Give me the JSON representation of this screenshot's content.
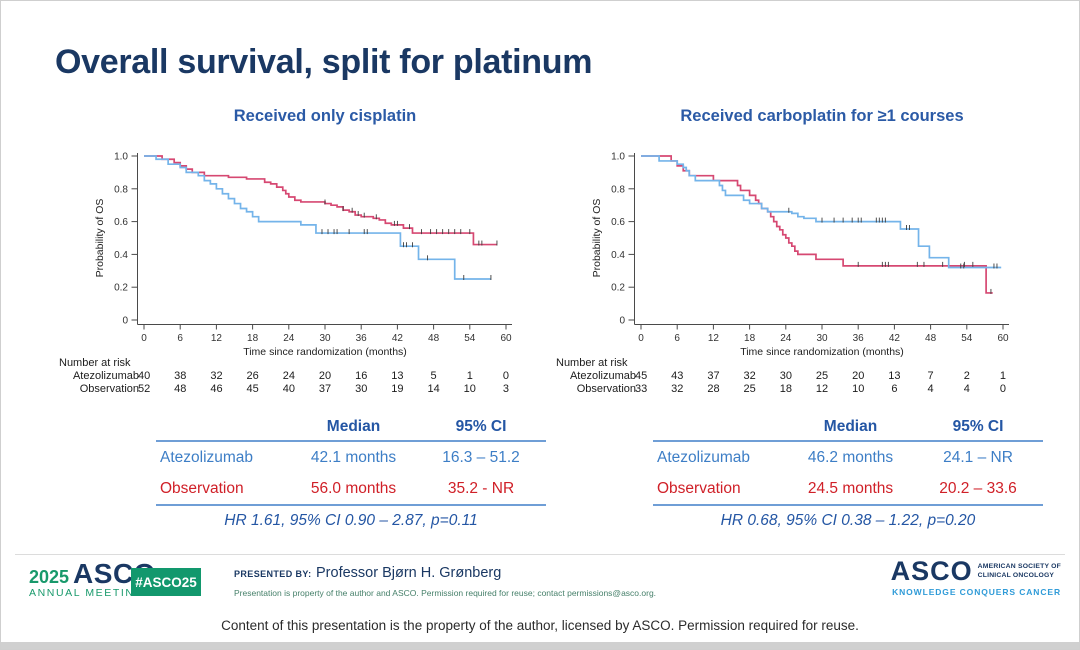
{
  "title": "Overall survival, split for platinum",
  "chart_data": [
    {
      "type": "line",
      "km_style": "step",
      "title": "Received only cisplatin",
      "xlabel": "Time since randomization (months)",
      "ylabel": "Probability of OS",
      "x_ticks": [
        0,
        6,
        12,
        18,
        24,
        30,
        36,
        42,
        48,
        54,
        60
      ],
      "y_ticks": [
        0,
        0.2,
        0.4,
        0.6,
        0.8,
        1.0
      ],
      "y_tick_labels": [
        "0",
        "0.2",
        "0.4",
        "0.6",
        "0.8",
        "1.0"
      ],
      "xlim": [
        0,
        60
      ],
      "ylim": [
        0,
        1.0
      ],
      "grid": false,
      "series": [
        {
          "name": "Observation",
          "color": "#d64872",
          "steps": [
            [
              0,
              1.0
            ],
            [
              3,
              0.98
            ],
            [
              5,
              0.96
            ],
            [
              6,
              0.94
            ],
            [
              7,
              0.92
            ],
            [
              8,
              0.9
            ],
            [
              10,
              0.88
            ],
            [
              14,
              0.87
            ],
            [
              17,
              0.86
            ],
            [
              20,
              0.84
            ],
            [
              21,
              0.83
            ],
            [
              22,
              0.81
            ],
            [
              23,
              0.79
            ],
            [
              23.5,
              0.77
            ],
            [
              24,
              0.75
            ],
            [
              25,
              0.73
            ],
            [
              26,
              0.72
            ],
            [
              30,
              0.71
            ],
            [
              31,
              0.7
            ],
            [
              32,
              0.69
            ],
            [
              33,
              0.67
            ],
            [
              34,
              0.66
            ],
            [
              35,
              0.64
            ],
            [
              36,
              0.63
            ],
            [
              38,
              0.62
            ],
            [
              39,
              0.61
            ],
            [
              40,
              0.59
            ],
            [
              41,
              0.58
            ],
            [
              43,
              0.56
            ],
            [
              44.5,
              0.53
            ],
            [
              54.6,
              0.46
            ],
            [
              58.5,
              0.46
            ]
          ],
          "censors": [
            [
              30,
              0.71
            ],
            [
              33,
              0.67
            ],
            [
              34.5,
              0.66
            ],
            [
              35.5,
              0.64
            ],
            [
              36.5,
              0.63
            ],
            [
              38.5,
              0.62
            ],
            [
              41.5,
              0.58
            ],
            [
              42,
              0.58
            ],
            [
              44,
              0.56
            ],
            [
              46,
              0.53
            ],
            [
              47.5,
              0.53
            ],
            [
              48.5,
              0.53
            ],
            [
              49.5,
              0.53
            ],
            [
              50.5,
              0.53
            ],
            [
              51.5,
              0.53
            ],
            [
              52.5,
              0.53
            ],
            [
              54,
              0.53
            ],
            [
              55.5,
              0.46
            ],
            [
              56,
              0.46
            ],
            [
              58.5,
              0.46
            ]
          ]
        },
        {
          "name": "Atezolizumab",
          "color": "#74b4ea",
          "steps": [
            [
              0,
              1.0
            ],
            [
              2,
              0.98
            ],
            [
              4,
              0.95
            ],
            [
              6,
              0.93
            ],
            [
              7,
              0.9
            ],
            [
              9,
              0.88
            ],
            [
              10,
              0.85
            ],
            [
              11,
              0.83
            ],
            [
              12,
              0.8
            ],
            [
              13,
              0.77
            ],
            [
              14,
              0.74
            ],
            [
              15,
              0.71
            ],
            [
              16,
              0.68
            ],
            [
              17,
              0.66
            ],
            [
              18,
              0.63
            ],
            [
              19,
              0.6
            ],
            [
              26,
              0.58
            ],
            [
              28.5,
              0.53
            ],
            [
              42.5,
              0.45
            ],
            [
              45.5,
              0.37
            ],
            [
              51.5,
              0.25
            ],
            [
              57.5,
              0.25
            ]
          ],
          "censors": [
            [
              29.5,
              0.53
            ],
            [
              30.5,
              0.53
            ],
            [
              31.5,
              0.53
            ],
            [
              32,
              0.53
            ],
            [
              34,
              0.53
            ],
            [
              36.5,
              0.53
            ],
            [
              37,
              0.53
            ],
            [
              43,
              0.45
            ],
            [
              43.5,
              0.45
            ],
            [
              44.5,
              0.45
            ],
            [
              47,
              0.37
            ],
            [
              53,
              0.25
            ],
            [
              57.5,
              0.25
            ]
          ]
        }
      ],
      "risk_header": "Number at risk",
      "risk_rows": [
        {
          "label": "Atezolizumab",
          "counts": [
            40,
            38,
            32,
            26,
            24,
            20,
            16,
            13,
            5,
            1,
            0
          ]
        },
        {
          "label": "Observation",
          "counts": [
            52,
            48,
            46,
            45,
            40,
            37,
            30,
            19,
            14,
            10,
            3
          ]
        }
      ],
      "table": {
        "headers": [
          "Median",
          "95% CI"
        ],
        "rows": [
          {
            "label": "Atezolizumab",
            "median": "42.1 months",
            "ci": "16.3 – 51.2"
          },
          {
            "label": "Observation",
            "median": "56.0 months",
            "ci": "35.2 - NR"
          }
        ],
        "hr_line": "HR 1.61, 95% CI 0.90 – 2.87, p=0.11"
      }
    },
    {
      "type": "line",
      "km_style": "step",
      "title": "Received carboplatin for ≥1 courses",
      "xlabel": "Time since randomization (months)",
      "ylabel": "Probability of OS",
      "x_ticks": [
        0,
        6,
        12,
        18,
        24,
        30,
        36,
        42,
        48,
        54,
        60
      ],
      "y_ticks": [
        0,
        0.2,
        0.4,
        0.6,
        0.8,
        1.0
      ],
      "y_tick_labels": [
        "0",
        "0.2",
        "0.4",
        "0.6",
        "0.8",
        "1.0"
      ],
      "xlim": [
        0,
        60
      ],
      "ylim": [
        0,
        1.0
      ],
      "grid": false,
      "series": [
        {
          "name": "Observation",
          "color": "#d64872",
          "steps": [
            [
              0,
              1.0
            ],
            [
              5,
              0.97
            ],
            [
              6,
              0.94
            ],
            [
              7,
              0.91
            ],
            [
              8,
              0.88
            ],
            [
              12,
              0.85
            ],
            [
              16,
              0.82
            ],
            [
              16.5,
              0.79
            ],
            [
              18,
              0.76
            ],
            [
              19,
              0.73
            ],
            [
              19.5,
              0.71
            ],
            [
              20,
              0.68
            ],
            [
              21,
              0.66
            ],
            [
              21.5,
              0.63
            ],
            [
              22,
              0.6
            ],
            [
              22.5,
              0.57
            ],
            [
              23,
              0.55
            ],
            [
              23.5,
              0.52
            ],
            [
              24,
              0.5
            ],
            [
              24.5,
              0.47
            ],
            [
              25,
              0.45
            ],
            [
              25.5,
              0.42
            ],
            [
              26,
              0.4
            ],
            [
              29,
              0.37
            ],
            [
              33.5,
              0.33
            ],
            [
              57.2,
              0.165
            ],
            [
              58.3,
              0.165
            ]
          ],
          "censors": [
            [
              36,
              0.33
            ],
            [
              40,
              0.33
            ],
            [
              40.5,
              0.33
            ],
            [
              41,
              0.33
            ],
            [
              45.8,
              0.33
            ],
            [
              46.9,
              0.33
            ],
            [
              50,
              0.33
            ],
            [
              53.6,
              0.33
            ],
            [
              55,
              0.33
            ],
            [
              58,
              0.165
            ]
          ]
        },
        {
          "name": "Atezolizumab",
          "color": "#74b4ea",
          "steps": [
            [
              0,
              1.0
            ],
            [
              3,
              0.97
            ],
            [
              6,
              0.95
            ],
            [
              7,
              0.93
            ],
            [
              7.5,
              0.91
            ],
            [
              8,
              0.88
            ],
            [
              9,
              0.85
            ],
            [
              13,
              0.82
            ],
            [
              13.5,
              0.79
            ],
            [
              14,
              0.76
            ],
            [
              17,
              0.73
            ],
            [
              18,
              0.71
            ],
            [
              20,
              0.68
            ],
            [
              21,
              0.66
            ],
            [
              25,
              0.65
            ],
            [
              26,
              0.63
            ],
            [
              27,
              0.62
            ],
            [
              29,
              0.6
            ],
            [
              43,
              0.555
            ],
            [
              46,
              0.45
            ],
            [
              47.8,
              0.38
            ],
            [
              51,
              0.32
            ],
            [
              59.7,
              0.32
            ]
          ],
          "censors": [
            [
              24.5,
              0.66
            ],
            [
              30,
              0.6
            ],
            [
              32,
              0.6
            ],
            [
              33.5,
              0.6
            ],
            [
              35,
              0.6
            ],
            [
              36,
              0.6
            ],
            [
              36.5,
              0.6
            ],
            [
              39,
              0.6
            ],
            [
              39.5,
              0.6
            ],
            [
              40,
              0.6
            ],
            [
              40.5,
              0.6
            ],
            [
              44,
              0.555
            ],
            [
              44.5,
              0.555
            ],
            [
              53,
              0.32
            ],
            [
              53.5,
              0.32
            ],
            [
              58.5,
              0.32
            ],
            [
              59,
              0.32
            ]
          ]
        }
      ],
      "risk_header": "Number at risk",
      "risk_rows": [
        {
          "label": "Atezolizumab",
          "counts": [
            45,
            43,
            37,
            32,
            30,
            25,
            20,
            13,
            7,
            2,
            1
          ]
        },
        {
          "label": "Observation",
          "counts": [
            33,
            32,
            28,
            25,
            18,
            12,
            10,
            6,
            4,
            4,
            0
          ]
        }
      ],
      "table": {
        "headers": [
          "Median",
          "95% CI"
        ],
        "rows": [
          {
            "label": "Atezolizumab",
            "median": "46.2 months",
            "ci": "24.1 – NR"
          },
          {
            "label": "Observation",
            "median": "24.5 months",
            "ci": "20.2 – 33.6"
          }
        ],
        "hr_line": "HR 0.68, 95% CI 0.38 – 1.22, p=0.20"
      }
    }
  ],
  "footer": {
    "year": "2025",
    "asco": "ASCO",
    "reg_mark": "®",
    "annual_meeting": "ANNUAL MEETING",
    "hashtag": "#ASCO25",
    "presented_by_label": "PRESENTED BY:",
    "presenter": "Professor Bjørn H. Grønberg",
    "permission_note": "Presentation is property of the author and ASCO. Permission required for reuse; contact permissions@asco.org.",
    "right_logo": {
      "asco": "ASCO",
      "line1": "AMERICAN SOCIETY OF",
      "line2": "CLINICAL ONCOLOGY",
      "tagline": "KNOWLEDGE CONQUERS CANCER"
    }
  },
  "disclaimer": "Content of this presentation is the property of the author, licensed by ASCO. Permission required for reuse."
}
